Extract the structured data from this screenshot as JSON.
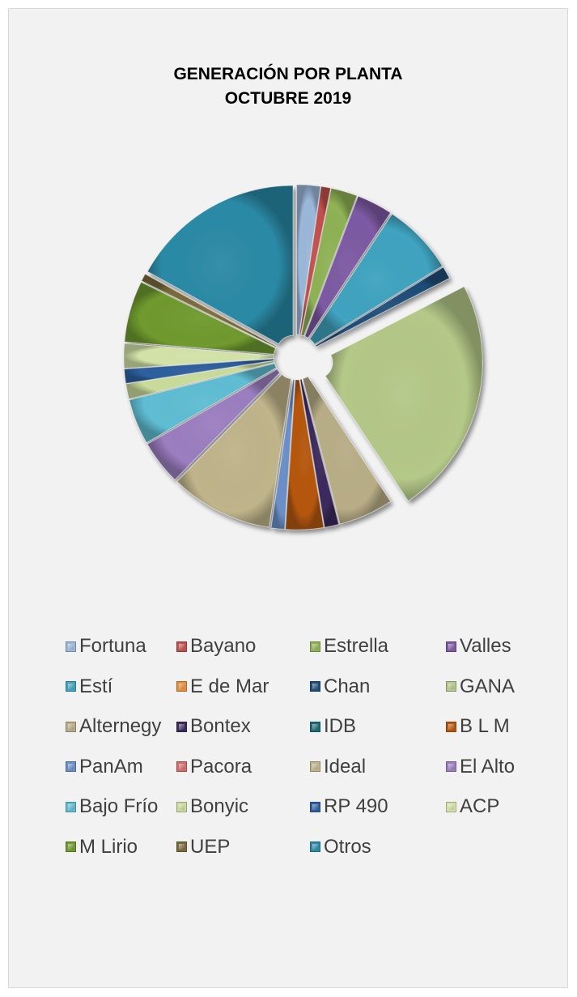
{
  "chart_data": {
    "type": "pie",
    "title_lines": [
      "GENERACIÓN POR PLANTA",
      "OCTUBRE 2019"
    ],
    "series": [
      {
        "name": "Fortuna",
        "value": 2.5,
        "color": "#9bb7d9"
      },
      {
        "name": "Bayano",
        "value": 1.0,
        "color": "#c0504d"
      },
      {
        "name": "Estrella",
        "value": 2.8,
        "color": "#8fb255"
      },
      {
        "name": "Valles",
        "value": 3.8,
        "color": "#7d5aa3"
      },
      {
        "name": "Estí",
        "value": 7.6,
        "color": "#3fa3bf"
      },
      {
        "name": "E de Mar",
        "value": 0.0,
        "color": "#e88c3a"
      },
      {
        "name": "Chan",
        "value": 1.3,
        "color": "#1f4e79"
      },
      {
        "name": "GANA",
        "value": 25.3,
        "color": "#b4c888"
      },
      {
        "name": "Alternegy",
        "value": 5.8,
        "color": "#b8ad86"
      },
      {
        "name": "Bontex",
        "value": 1.5,
        "color": "#3b2a5c"
      },
      {
        "name": "IDB",
        "value": 0.0,
        "color": "#1c6a74"
      },
      {
        "name": "B L M",
        "value": 4.0,
        "color": "#b5570d"
      },
      {
        "name": "PanAm",
        "value": 1.4,
        "color": "#6a8fc7"
      },
      {
        "name": "Pacora",
        "value": 0.0,
        "color": "#d46a6a"
      },
      {
        "name": "Ideal",
        "value": 10.9,
        "color": "#bfb48a"
      },
      {
        "name": "El Alto",
        "value": 4.7,
        "color": "#9b7ec0"
      },
      {
        "name": "Bajo Frío",
        "value": 4.8,
        "color": "#5fbdd3"
      },
      {
        "name": "Bonyic",
        "value": 1.6,
        "color": "#c9dc9b"
      },
      {
        "name": "RP 490",
        "value": 1.5,
        "color": "#2d5f9e"
      },
      {
        "name": "ACP",
        "value": 2.6,
        "color": "#d3e3a8"
      },
      {
        "name": "M Lirio",
        "value": 6.5,
        "color": "#6f9a2e"
      },
      {
        "name": "UEP",
        "value": 0.8,
        "color": "#7a6a3a"
      },
      {
        "name": "Otros",
        "value": 18.5,
        "color": "#2b8aa6"
      }
    ]
  }
}
